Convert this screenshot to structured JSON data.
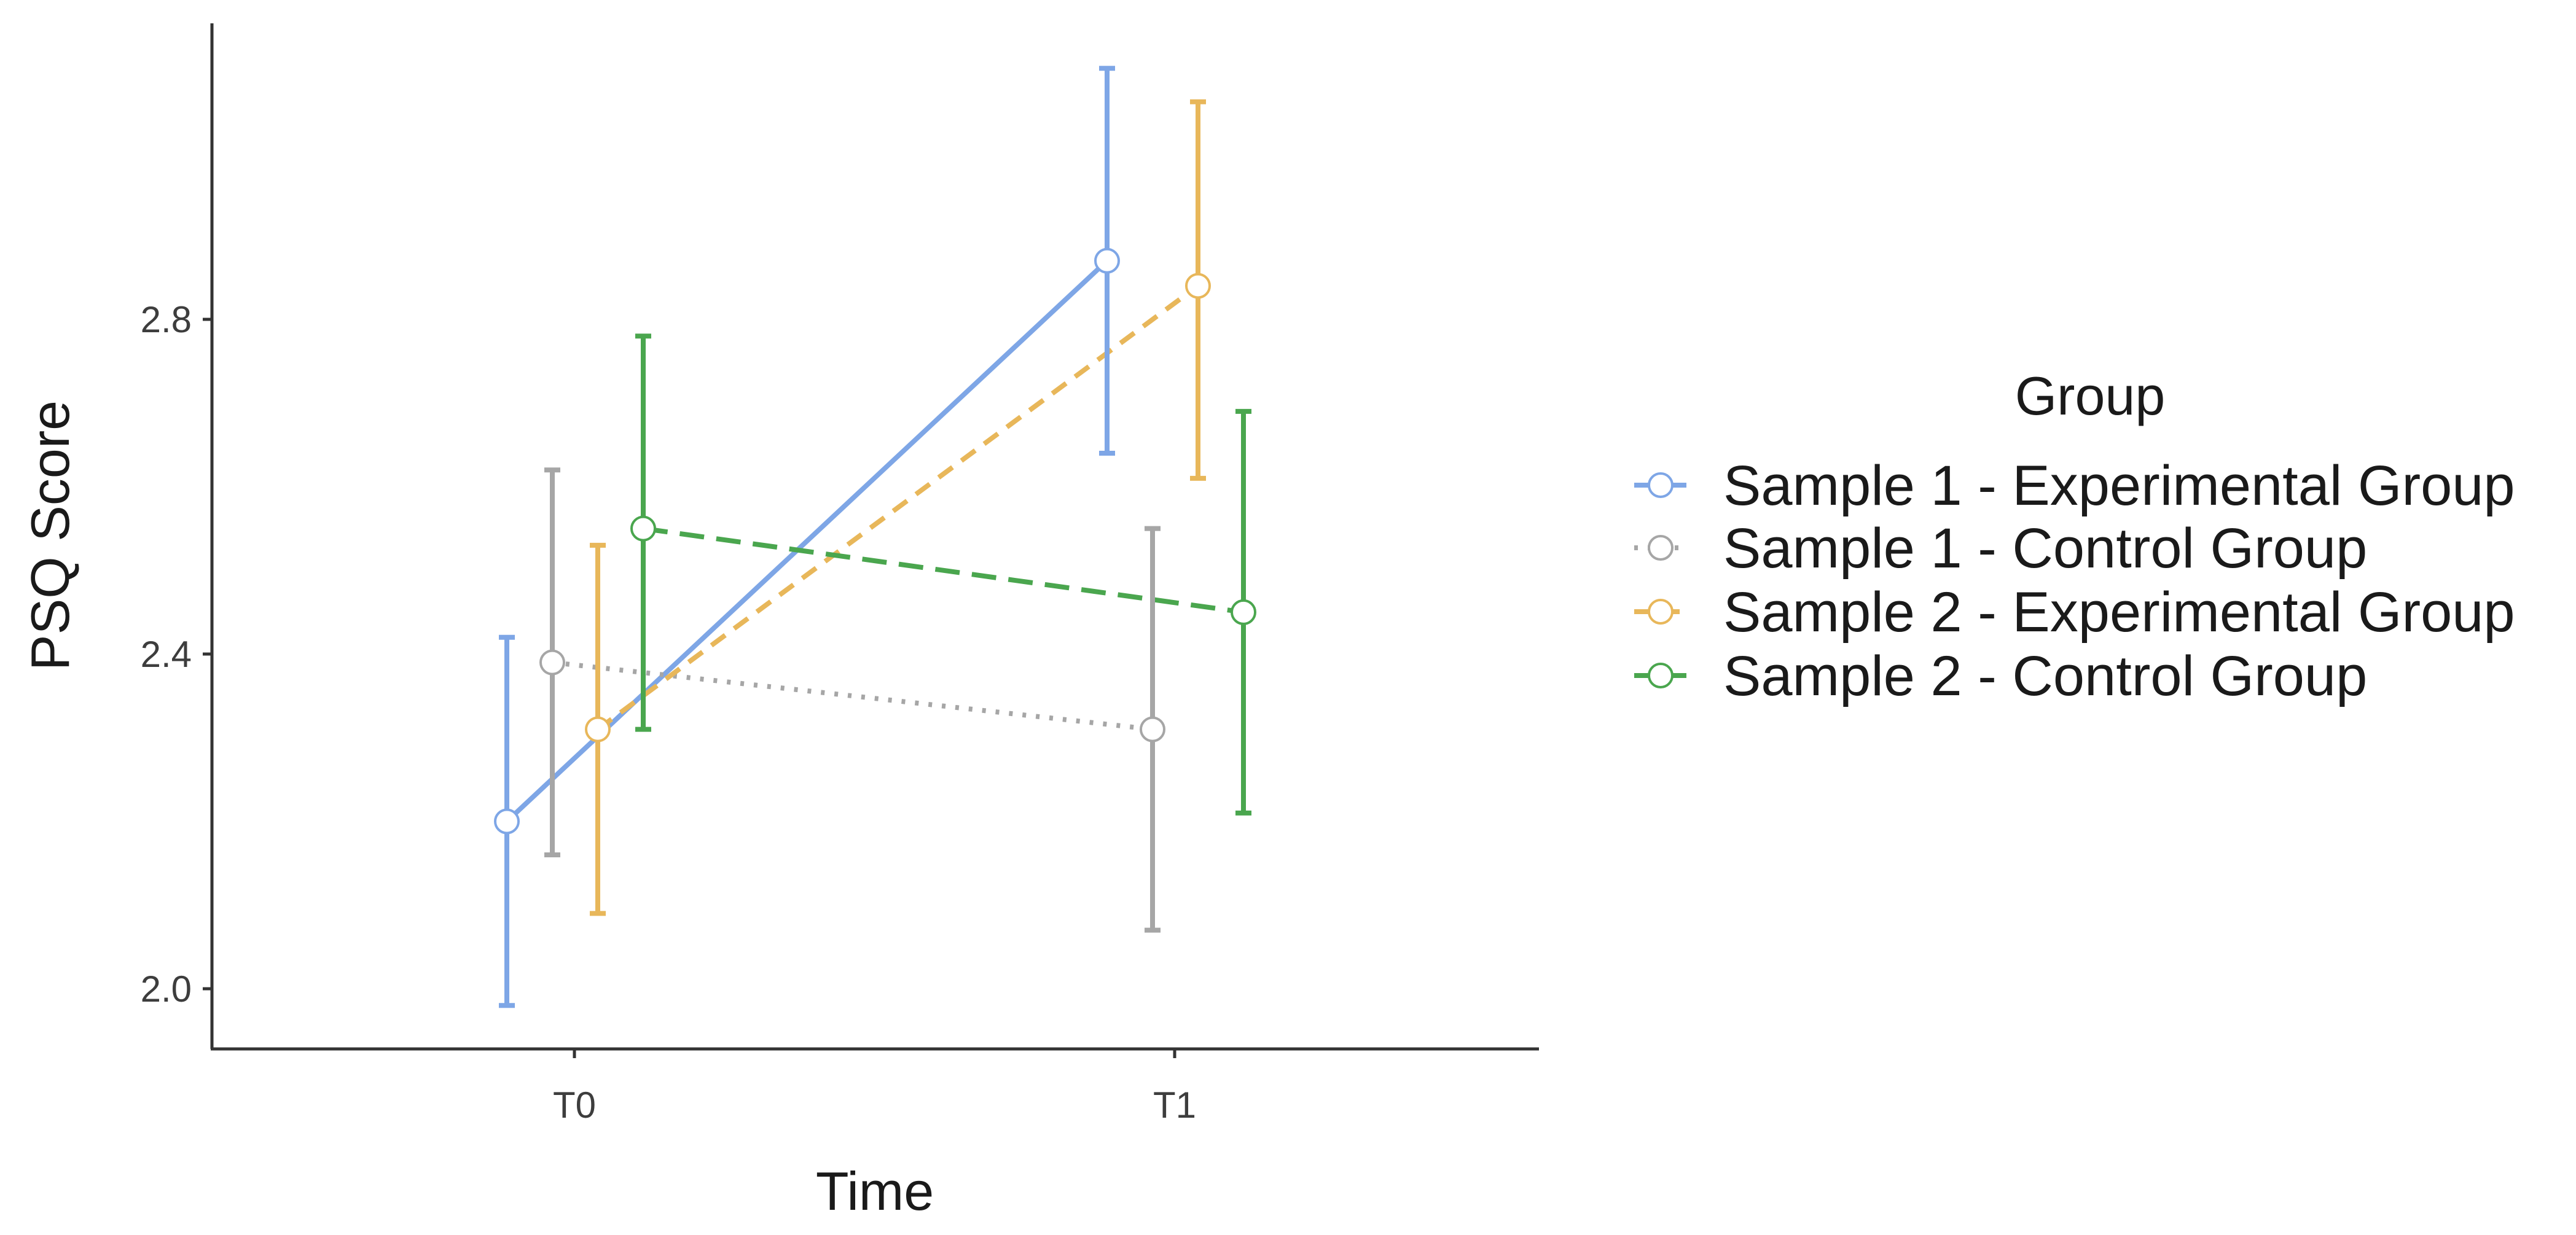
{
  "chart_data": {
    "type": "line",
    "title": "",
    "xlabel": "Time",
    "ylabel": "PSQ Score",
    "categories": [
      "T0",
      "T1"
    ],
    "ylim": [
      1.93,
      3.15
    ],
    "yticks": [
      2.0,
      2.4,
      2.8
    ],
    "ytick_labels": [
      "2.0",
      "2.4",
      "2.8"
    ],
    "grid": false,
    "legend": {
      "title": "Group",
      "position": "right"
    },
    "series": [
      {
        "name": "Sample 1 - Experimental Group",
        "color": "#7ea6e6",
        "dash": "solid",
        "values": [
          2.2,
          2.87
        ],
        "errors_low": [
          1.98,
          2.64
        ],
        "errors_high": [
          2.42,
          3.1
        ]
      },
      {
        "name": "Sample 1 - Control Group",
        "color": "#a6a6a6",
        "dash": "dotted",
        "values": [
          2.39,
          2.31
        ],
        "errors_low": [
          2.16,
          2.07
        ],
        "errors_high": [
          2.62,
          2.55
        ]
      },
      {
        "name": "Sample 2 - Experimental Group",
        "color": "#e8b75a",
        "dash": "dashed",
        "values": [
          2.31,
          2.84
        ],
        "errors_low": [
          2.09,
          2.61
        ],
        "errors_high": [
          2.53,
          3.06
        ]
      },
      {
        "name": "Sample 2 - Control Group",
        "color": "#4aa64e",
        "dash": "longdash",
        "values": [
          2.55,
          2.45
        ],
        "errors_low": [
          2.31,
          2.21
        ],
        "errors_high": [
          2.78,
          2.69
        ]
      }
    ]
  }
}
